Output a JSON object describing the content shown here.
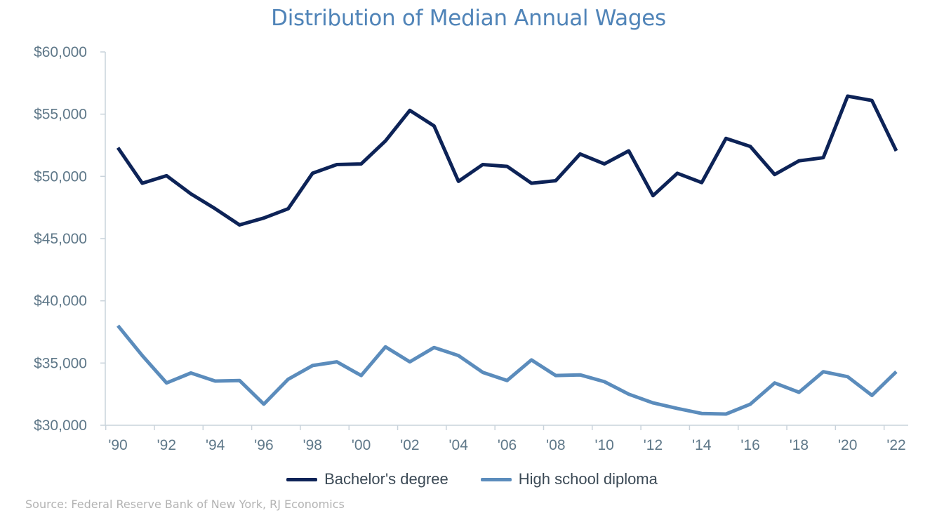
{
  "chart_data": {
    "type": "line",
    "title": "Distribution of Median Annual Wages",
    "source": "Source: Federal Reserve Bank of New York, RJ Economics",
    "x": [
      1990,
      1991,
      1992,
      1993,
      1994,
      1995,
      1996,
      1997,
      1998,
      1999,
      2000,
      2001,
      2002,
      2003,
      2004,
      2005,
      2006,
      2007,
      2008,
      2009,
      2010,
      2011,
      2012,
      2013,
      2014,
      2015,
      2016,
      2017,
      2018,
      2019,
      2020,
      2021,
      2022
    ],
    "x_tick_labels": [
      "'90",
      "'92",
      "'94",
      "'96",
      "'98",
      "'00",
      "'02",
      "'04",
      "'06",
      "'08",
      "'10",
      "'12",
      "'14",
      "'16",
      "'18",
      "'20",
      "'22"
    ],
    "x_tick_values": [
      1990,
      1992,
      1994,
      1996,
      1998,
      2000,
      2002,
      2004,
      2006,
      2008,
      2010,
      2012,
      2014,
      2016,
      2018,
      2020,
      2022
    ],
    "y_tick_labels": [
      "$60,000",
      "$55,000",
      "$50,000",
      "$45,000",
      "$40,000",
      "$35,000",
      "$30,000"
    ],
    "y_tick_values": [
      60000,
      55000,
      50000,
      45000,
      40000,
      35000,
      30000
    ],
    "ylim": [
      30000,
      60000
    ],
    "xlim": [
      1990,
      2022
    ],
    "xlabel": "",
    "ylabel": "",
    "grid": false,
    "legend_position": "bottom",
    "series": [
      {
        "name": "Bachelor's degree",
        "color": "#0d2357",
        "values": [
          52300,
          49450,
          50050,
          48600,
          47400,
          46100,
          46650,
          47400,
          50250,
          50950,
          51000,
          52850,
          55300,
          54050,
          49600,
          50950,
          50800,
          49450,
          49650,
          51800,
          51000,
          52050,
          48450,
          50250,
          49500,
          53050,
          52400,
          50150,
          51250,
          51500,
          56450,
          56100,
          52050
        ]
      },
      {
        "name": "High school diploma",
        "color": "#5b8cbc",
        "values": [
          38000,
          35600,
          33400,
          34200,
          33550,
          33600,
          31700,
          33700,
          34800,
          35100,
          34000,
          36300,
          35100,
          36250,
          35600,
          34250,
          33600,
          35250,
          34000,
          34050,
          33500,
          32500,
          31800,
          31350,
          30950,
          30900,
          31700,
          33400,
          32650,
          34300,
          33900,
          32400,
          34300
        ]
      }
    ]
  }
}
